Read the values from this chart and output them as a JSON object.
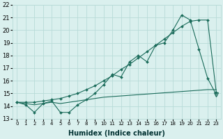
{
  "xlabel": "Humidex (Indice chaleur)",
  "x_values": [
    0,
    1,
    2,
    3,
    4,
    5,
    6,
    7,
    8,
    9,
    10,
    11,
    12,
    13,
    14,
    15,
    16,
    17,
    18,
    19,
    20,
    21,
    22,
    23
  ],
  "line1_jagged": [
    14.3,
    14.1,
    13.5,
    14.2,
    14.4,
    13.5,
    13.5,
    14.1,
    14.5,
    15.0,
    15.7,
    16.5,
    16.3,
    17.5,
    18.0,
    17.5,
    18.8,
    19.0,
    20.0,
    21.2,
    20.8,
    18.5,
    16.2,
    14.9
  ],
  "line2_trend": [
    14.3,
    14.3,
    14.3,
    14.4,
    14.5,
    14.6,
    14.8,
    15.0,
    15.3,
    15.6,
    16.0,
    16.4,
    16.9,
    17.3,
    17.8,
    18.3,
    18.8,
    19.3,
    19.8,
    20.3,
    20.7,
    20.8,
    20.8,
    15.1
  ],
  "line3_flat": [
    14.3,
    14.2,
    14.1,
    14.2,
    14.3,
    14.2,
    14.3,
    14.4,
    14.5,
    14.6,
    14.7,
    14.75,
    14.8,
    14.85,
    14.9,
    14.95,
    15.0,
    15.05,
    15.1,
    15.15,
    15.2,
    15.25,
    15.3,
    15.3
  ],
  "line_color": "#1a6b5a",
  "bg_color": "#daf0ee",
  "grid_color": "#b8dbd8",
  "ylim": [
    13,
    22
  ],
  "yticks": [
    13,
    14,
    15,
    16,
    17,
    18,
    19,
    20,
    21,
    22
  ]
}
